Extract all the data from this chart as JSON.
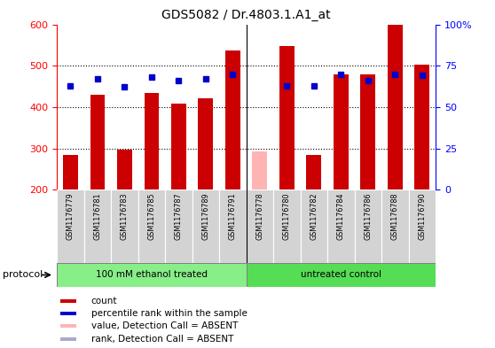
{
  "title": "GDS5082 / Dr.4803.1.A1_at",
  "samples": [
    "GSM1176779",
    "GSM1176781",
    "GSM1176783",
    "GSM1176785",
    "GSM1176787",
    "GSM1176789",
    "GSM1176791",
    "GSM1176778",
    "GSM1176780",
    "GSM1176782",
    "GSM1176784",
    "GSM1176786",
    "GSM1176788",
    "GSM1176790"
  ],
  "counts": [
    285,
    430,
    296,
    435,
    408,
    422,
    537,
    293,
    548,
    284,
    480,
    480,
    600,
    502
  ],
  "ranks": [
    63,
    67,
    62,
    68,
    66,
    67,
    70,
    null,
    63,
    63,
    70,
    66,
    70,
    69
  ],
  "absent_mask": [
    false,
    false,
    false,
    false,
    false,
    false,
    false,
    true,
    false,
    false,
    false,
    false,
    false,
    false
  ],
  "ylim_left": [
    200,
    600
  ],
  "ylim_right": [
    0,
    100
  ],
  "left_ticks": [
    200,
    300,
    400,
    500,
    600
  ],
  "right_ticks": [
    0,
    25,
    50,
    75,
    100
  ],
  "bar_color_present": "#cc0000",
  "bar_color_absent": "#ffb3b3",
  "rank_color_present": "#0000cc",
  "rank_color_absent": "#aaaacc",
  "group1_label": "100 mM ethanol treated",
  "group2_label": "untreated control",
  "group1_color": "#88ee88",
  "group2_color": "#55dd55",
  "protocol_label": "protocol",
  "legend_items": [
    {
      "label": "count",
      "color": "#cc0000"
    },
    {
      "label": "percentile rank within the sample",
      "color": "#0000cc"
    },
    {
      "label": "value, Detection Call = ABSENT",
      "color": "#ffb3b3"
    },
    {
      "label": "rank, Detection Call = ABSENT",
      "color": "#aaaacc"
    }
  ],
  "n_group1": 7,
  "n_group2": 7,
  "fig_width": 5.58,
  "fig_height": 3.93,
  "dpi": 100
}
